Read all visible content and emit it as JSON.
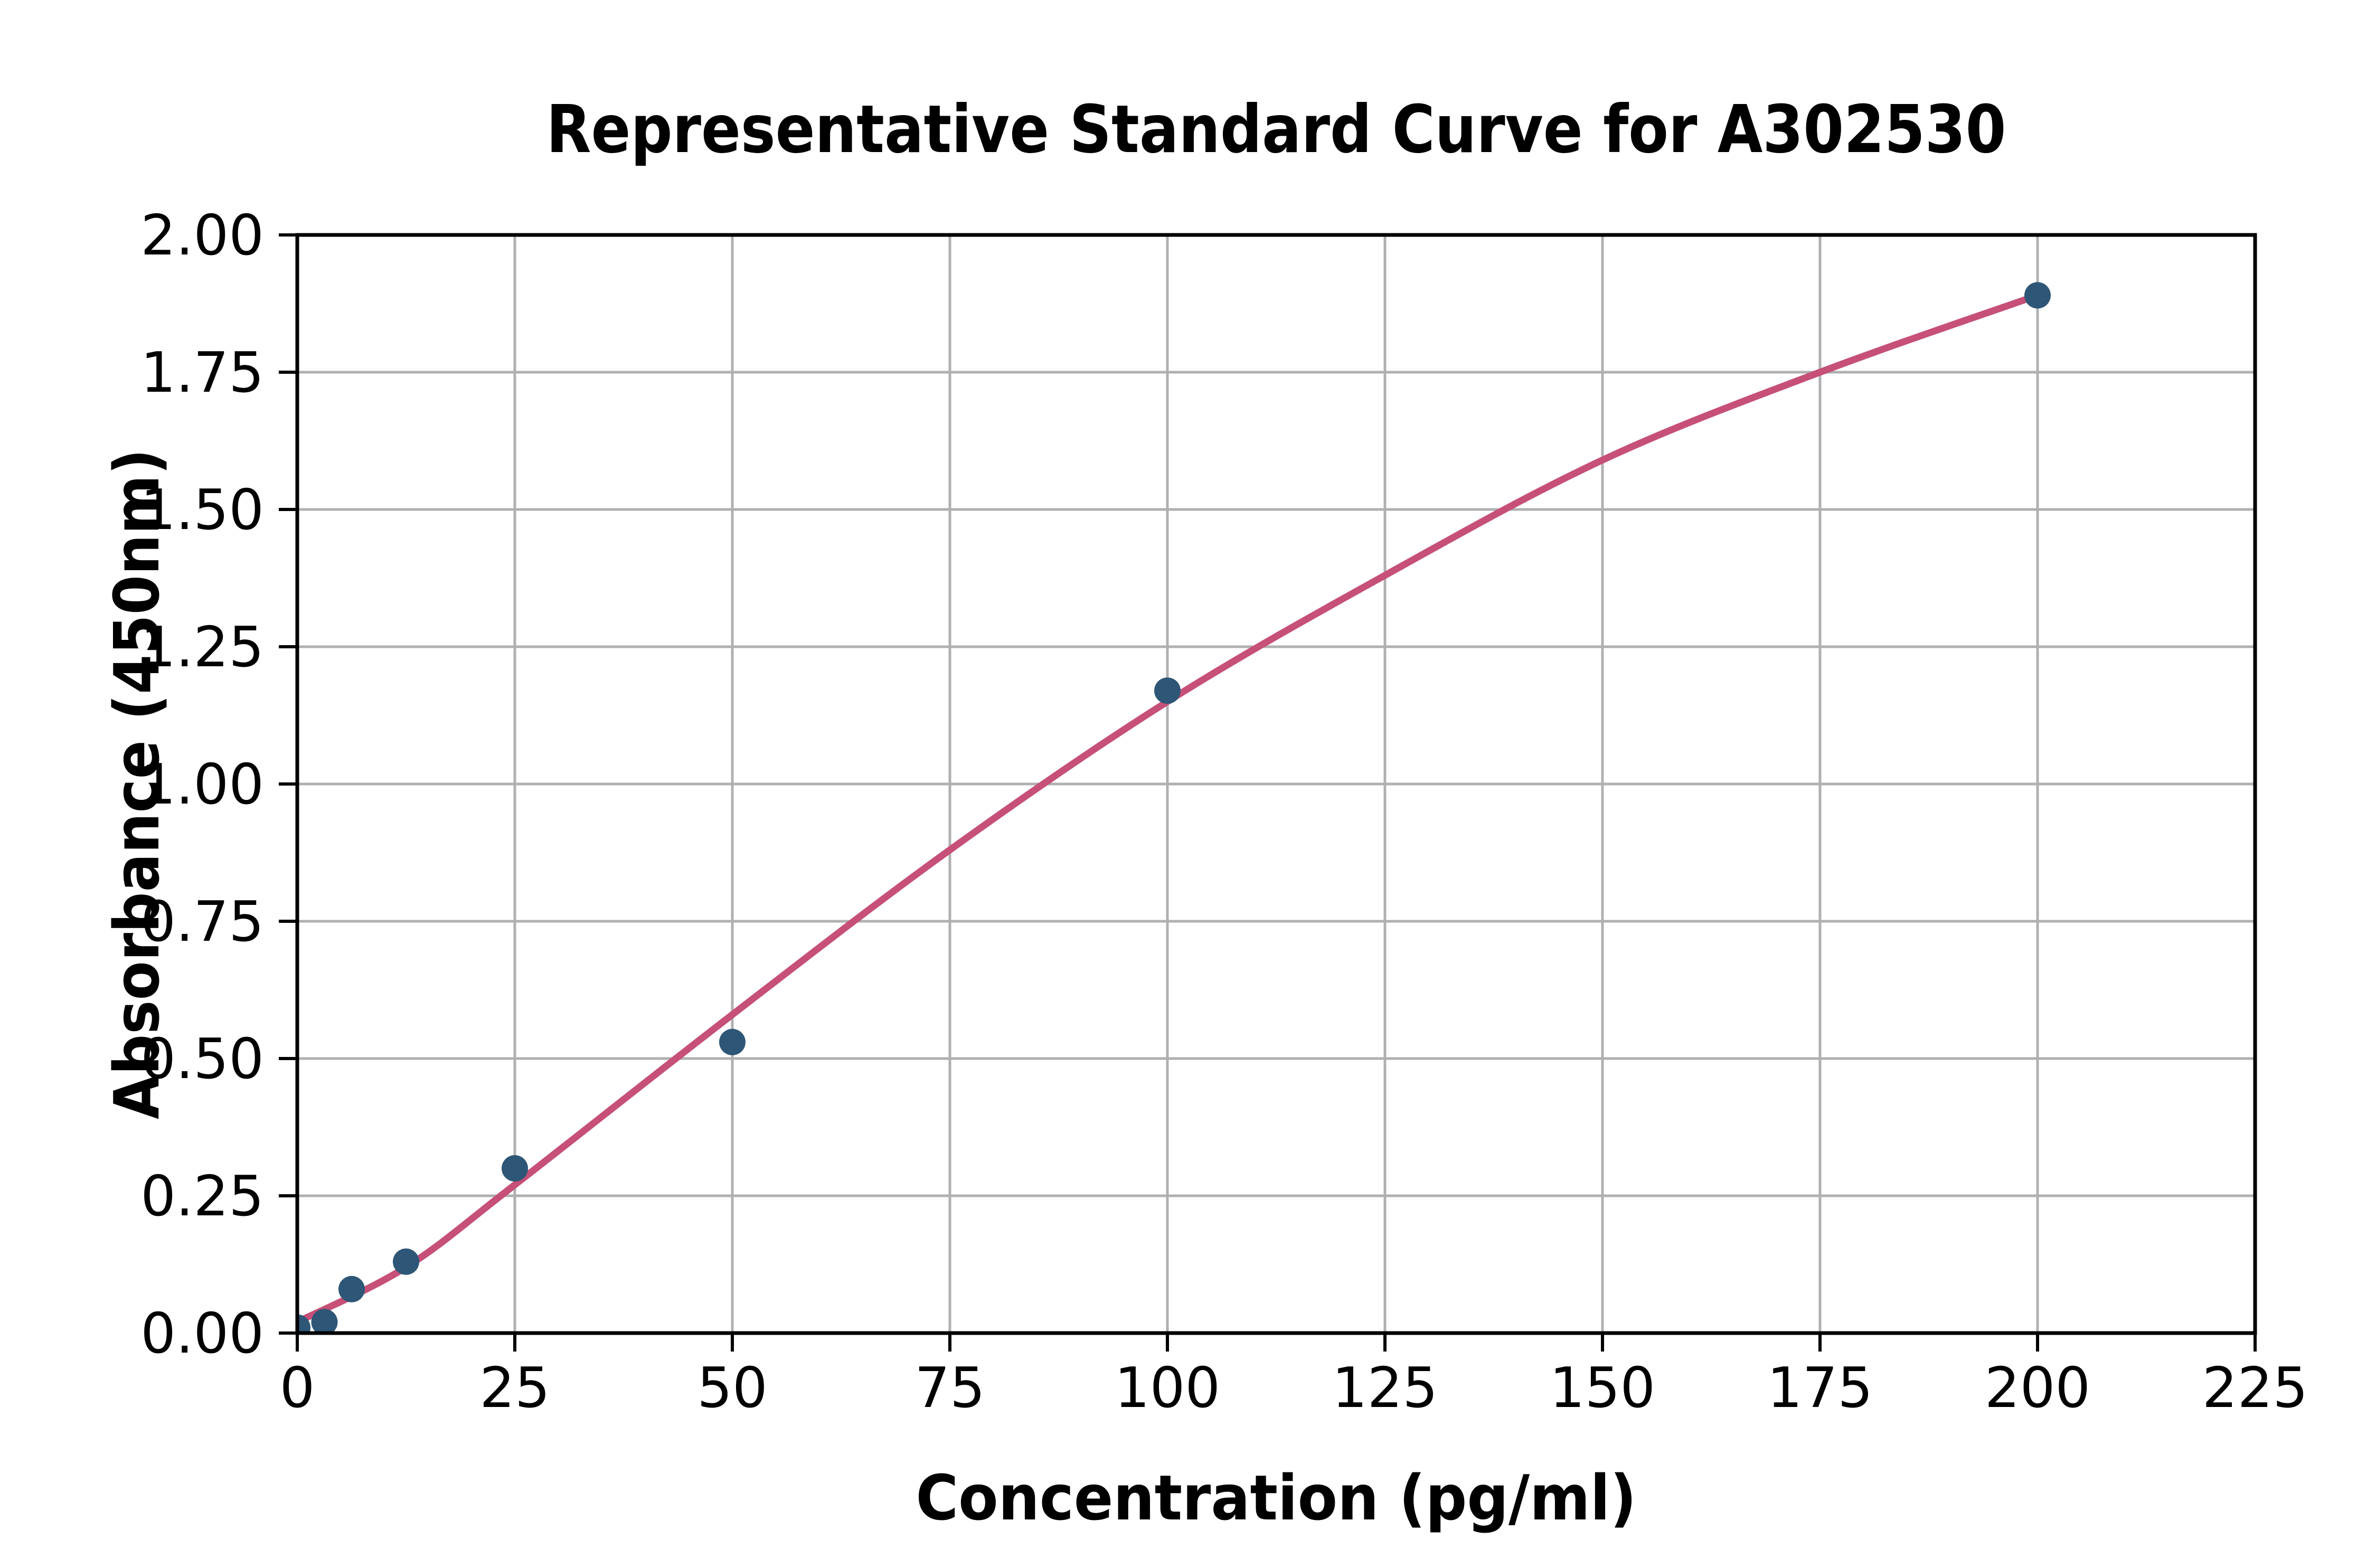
{
  "figure": {
    "title": "Representative Standard Curve for A302530",
    "background_color": "#ffffff",
    "x_axis": {
      "label": "Concentration (pg/ml)",
      "tick_labels": [
        "0",
        "25",
        "50",
        "75",
        "100",
        "125",
        "150",
        "175",
        "200",
        "225"
      ],
      "min": 0,
      "max": 225
    },
    "y_axis": {
      "label": "Absorbance (450nm)",
      "tick_labels": [
        "0.00",
        "0.25",
        "0.50",
        "0.75",
        "1.00",
        "1.25",
        "1.50",
        "1.75",
        "2.00"
      ],
      "min": 0.0,
      "max": 2.0
    }
  },
  "chart_data": {
    "type": "scatter",
    "title": "Representative Standard Curve for A302530",
    "xlabel": "Concentration (pg/ml)",
    "ylabel": "Absorbance (450nm)",
    "xlim": [
      0,
      225
    ],
    "ylim": [
      0.0,
      2.0
    ],
    "x_ticks": [
      0,
      25,
      50,
      75,
      100,
      125,
      150,
      175,
      200,
      225
    ],
    "y_ticks": [
      0.0,
      0.25,
      0.5,
      0.75,
      1.0,
      1.25,
      1.5,
      1.75,
      2.0
    ],
    "grid": true,
    "legend": false,
    "series": [
      {
        "name": "standard-points",
        "type": "scatter",
        "color": "#2e5676",
        "marker": "circle",
        "x": [
          0,
          3.125,
          6.25,
          12.5,
          25,
          50,
          100,
          200
        ],
        "y": [
          0.01,
          0.02,
          0.08,
          0.13,
          0.3,
          0.53,
          1.17,
          1.89
        ]
      },
      {
        "name": "fitted-curve",
        "type": "line",
        "color": "#c65077",
        "x": [
          0,
          12.5,
          25,
          50,
          75,
          100,
          125,
          150,
          175,
          200
        ],
        "y": [
          0.02,
          0.12,
          0.27,
          0.58,
          0.88,
          1.15,
          1.38,
          1.59,
          1.75,
          1.89
        ]
      }
    ],
    "colors": {
      "curve": "#c65077",
      "points": "#2e5676",
      "grid": "#b0b0b0",
      "axes": "#000000",
      "background": "#ffffff"
    }
  }
}
